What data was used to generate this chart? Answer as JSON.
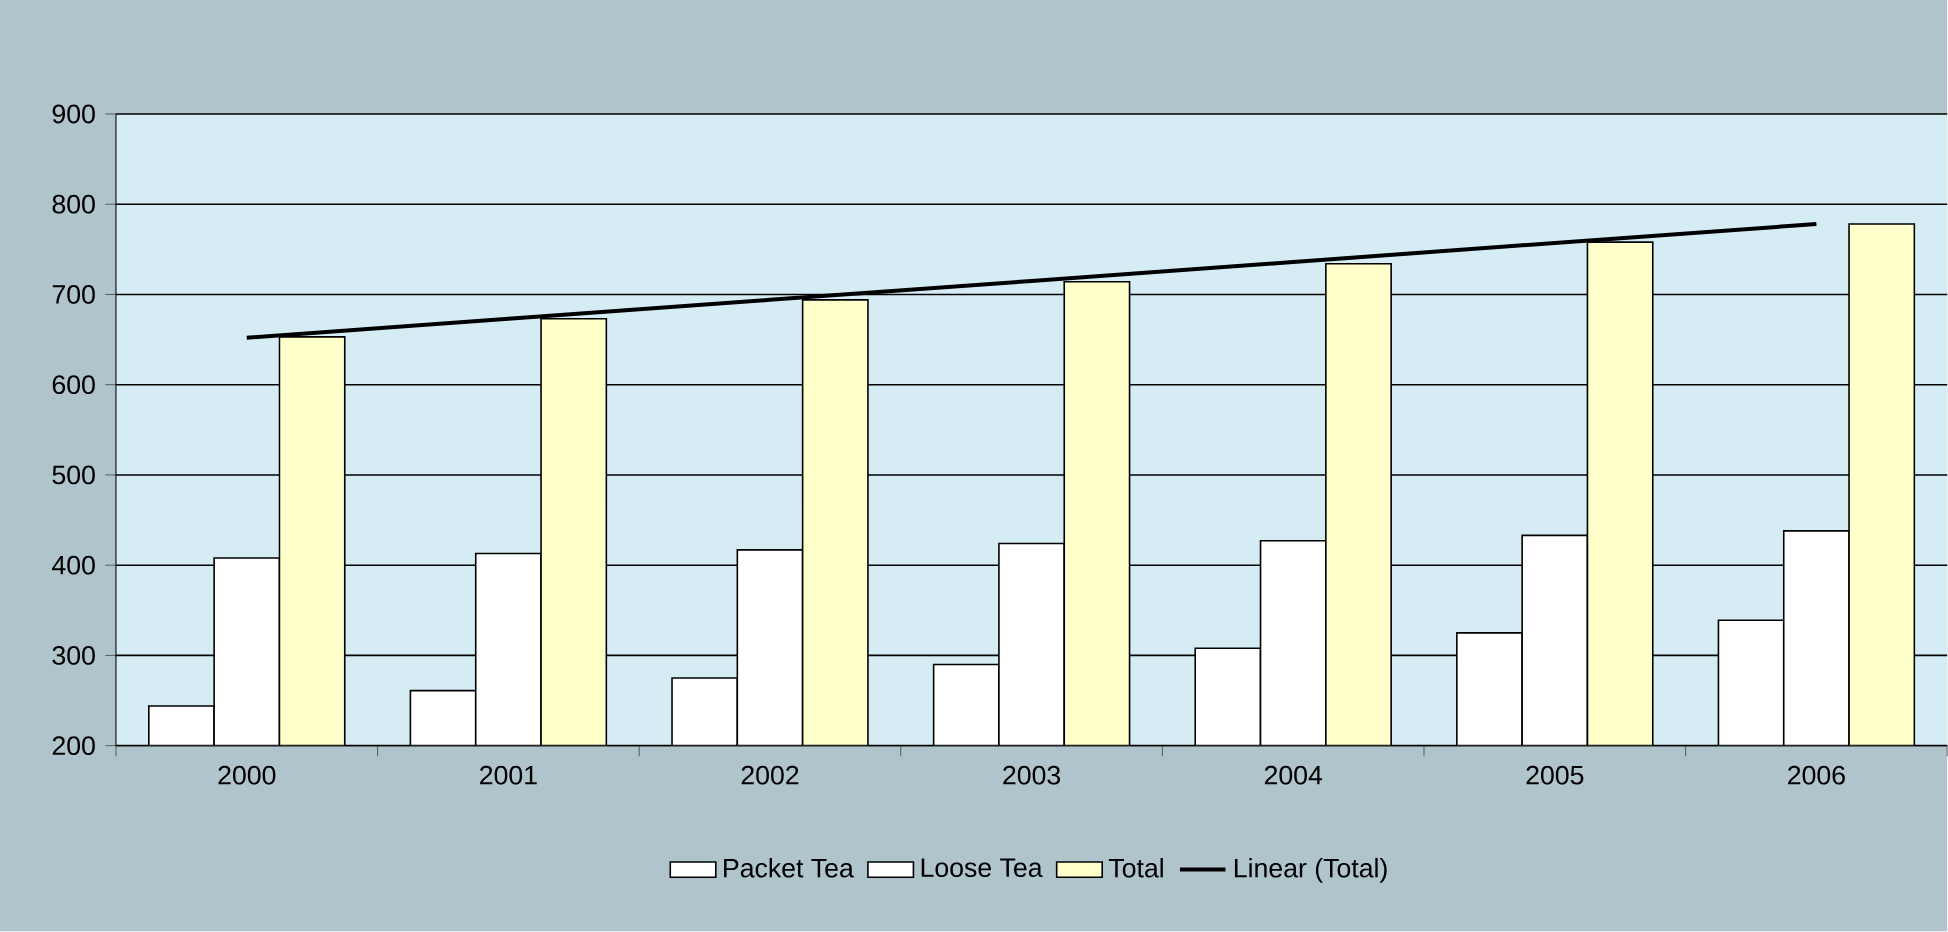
{
  "chart_data": {
    "type": "bar",
    "categories": [
      "2000",
      "2001",
      "2002",
      "2003",
      "2004",
      "2005",
      "2006"
    ],
    "series": [
      {
        "name": "Packet Tea",
        "color": "#ffffff",
        "values": [
          244,
          261,
          275,
          290,
          308,
          325,
          339
        ]
      },
      {
        "name": "Loose Tea",
        "color": "#ffffff",
        "values": [
          408,
          413,
          417,
          424,
          427,
          433,
          438
        ]
      },
      {
        "name": "Total",
        "color": "#ffffcc",
        "values": [
          653,
          673,
          694,
          714,
          734,
          758,
          778
        ]
      },
      {
        "name": "Linear (Total)",
        "type": "line",
        "color": "#000000",
        "values": [
          652,
          673,
          694,
          715,
          736,
          757,
          778
        ]
      }
    ],
    "ylim": [
      200,
      900
    ],
    "yticks": [
      200,
      300,
      400,
      500,
      600,
      700,
      800,
      900
    ],
    "grid": "y",
    "legend": "bottom",
    "marker": "none",
    "line_style": "solid"
  }
}
